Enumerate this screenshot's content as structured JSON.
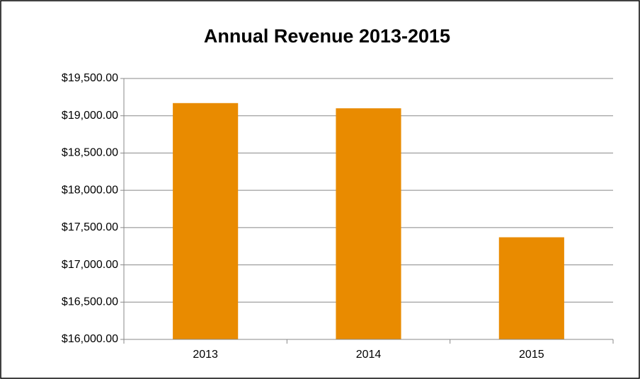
{
  "chart_data": {
    "type": "bar",
    "title": "Annual Revenue 2013-2015",
    "categories": [
      "2013",
      "2014",
      "2015"
    ],
    "values": [
      19170,
      19100,
      17370
    ],
    "color": "#e98b00",
    "ylim": [
      16000,
      19500
    ],
    "yticks": [
      {
        "value": 16000,
        "label": "$16,000.00"
      },
      {
        "value": 16500,
        "label": "$16,500.00"
      },
      {
        "value": 17000,
        "label": "$17,000.00"
      },
      {
        "value": 17500,
        "label": "$17,500.00"
      },
      {
        "value": 18000,
        "label": "$18,000.00"
      },
      {
        "value": 18500,
        "label": "$18,500.00"
      },
      {
        "value": 19000,
        "label": "$19,000.00"
      },
      {
        "value": 19500,
        "label": "$19,500.00"
      }
    ],
    "grid": true
  }
}
